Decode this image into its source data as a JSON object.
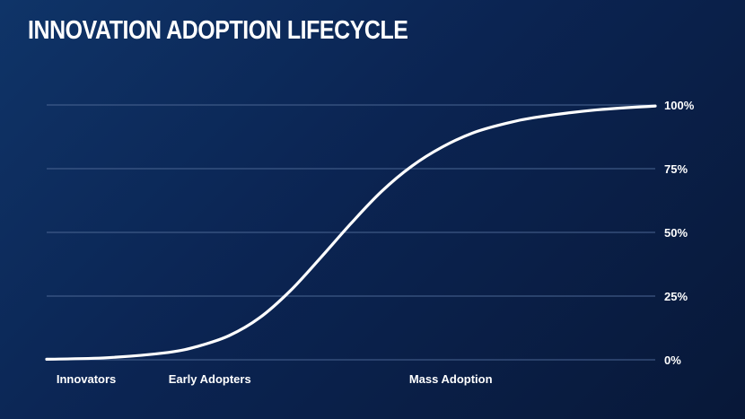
{
  "title": "INNOVATION ADOPTION LIFECYCLE",
  "colors": {
    "line": "#ffffff",
    "grid": "#4a6592",
    "background": "#0b2452"
  },
  "chart_data": {
    "type": "line",
    "title": "INNOVATION ADOPTION LIFECYCLE",
    "xlabel": "",
    "ylabel": "",
    "ylim": [
      0,
      100
    ],
    "xlim": [
      0,
      100
    ],
    "y_ticks": [
      {
        "value": 0,
        "label": "0%"
      },
      {
        "value": 25,
        "label": "25%"
      },
      {
        "value": 50,
        "label": "50%"
      },
      {
        "value": 75,
        "label": "75%"
      },
      {
        "value": 100,
        "label": "100%"
      }
    ],
    "x_ticks": [
      {
        "value": 6.5,
        "label": "Innovators"
      },
      {
        "value": 26.8,
        "label": "Early Adopters"
      },
      {
        "value": 66.4,
        "label": "Mass Adoption"
      }
    ],
    "grid": true,
    "legend": "none",
    "series": [
      {
        "x": [
          0,
          10,
          20,
          25,
          30,
          35,
          40,
          45,
          50,
          55,
          60,
          65,
          70,
          75,
          80,
          90,
          100
        ],
        "y": [
          0.2,
          0.8,
          2.9,
          5.4,
          9.5,
          16.5,
          27.0,
          40.0,
          53.5,
          66.0,
          76.0,
          83.5,
          89.0,
          92.5,
          95.0,
          98.0,
          99.6
        ]
      }
    ]
  }
}
